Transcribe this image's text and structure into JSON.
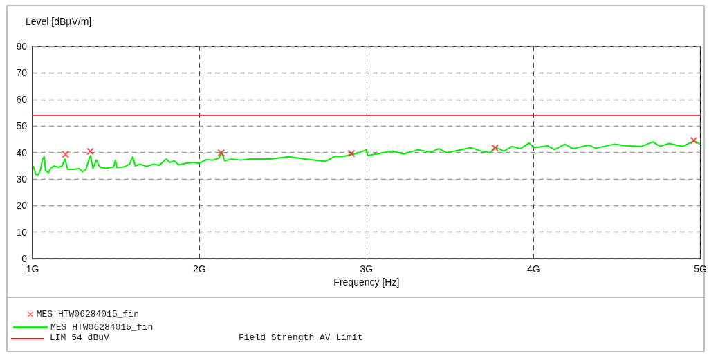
{
  "chart_data": {
    "type": "line",
    "xlabel": "Frequency [Hz]",
    "ylabel": "Level [dBµV/m]",
    "xlim": [
      1,
      5
    ],
    "xticks": [
      {
        "value": 1,
        "label": "1G"
      },
      {
        "value": 2,
        "label": "2G"
      },
      {
        "value": 3,
        "label": "3G"
      },
      {
        "value": 4,
        "label": "4G"
      },
      {
        "value": 5,
        "label": "5G"
      }
    ],
    "ylim": [
      0,
      80
    ],
    "yticks": [
      0,
      10,
      20,
      30,
      40,
      50,
      60,
      70,
      80
    ],
    "grid": true,
    "legend": "bottom",
    "series": [
      {
        "name": "MES HTW06284015_fin",
        "type": "scatter",
        "marker": "cross",
        "color": "#ff3030",
        "x": [
          1.198,
          1.346,
          2.13,
          2.91,
          3.77,
          4.96
        ],
        "values": [
          39.3,
          40.4,
          39.8,
          39.6,
          41.7,
          44.5
        ]
      },
      {
        "name": "MES HTW06284015_fin",
        "marker": "none",
        "line_style": "solid",
        "color": "#00ee00",
        "x": [
          1.005,
          1.019,
          1.033,
          1.047,
          1.06,
          1.07,
          1.078,
          1.095,
          1.108,
          1.129,
          1.156,
          1.177,
          1.195,
          1.211,
          1.246,
          1.28,
          1.3,
          1.32,
          1.339,
          1.348,
          1.362,
          1.383,
          1.403,
          1.437,
          1.486,
          1.497,
          1.506,
          1.547,
          1.582,
          1.6,
          1.616,
          1.643,
          1.684,
          1.725,
          1.76,
          1.8,
          1.822,
          1.849,
          1.877,
          1.918,
          1.959,
          2.0,
          2.041,
          2.082,
          2.117,
          2.134,
          2.151,
          2.192,
          2.247,
          2.302,
          2.425,
          2.535,
          2.631,
          2.754,
          2.809,
          2.864,
          2.908,
          2.947,
          2.999,
          3.008,
          3.083,
          3.155,
          3.221,
          3.31,
          3.386,
          3.433,
          3.481,
          3.564,
          3.626,
          3.687,
          3.742,
          3.77,
          3.824,
          3.872,
          3.921,
          3.975,
          4.003,
          4.085,
          4.126,
          4.188,
          4.236,
          4.332,
          4.373,
          4.483,
          4.564,
          4.647,
          4.716,
          4.757,
          4.812,
          4.894,
          4.963,
          5.0
        ],
        "values": [
          34.9,
          31.8,
          31.6,
          33.2,
          37.5,
          38.4,
          33.2,
          32.3,
          34.0,
          34.9,
          34.4,
          34.9,
          37.5,
          33.6,
          33.6,
          33.9,
          32.7,
          33.6,
          37.5,
          38.8,
          34.0,
          37.1,
          34.5,
          34.0,
          34.5,
          37.1,
          34.3,
          34.5,
          35.6,
          38.3,
          34.9,
          35.6,
          34.7,
          35.6,
          35.1,
          37.5,
          36.2,
          36.8,
          35.3,
          35.9,
          36.2,
          35.9,
          37.3,
          37.1,
          37.9,
          39.9,
          36.8,
          37.5,
          37.1,
          37.5,
          37.5,
          38.4,
          37.5,
          36.6,
          38.5,
          38.5,
          39.2,
          39.7,
          41.0,
          38.8,
          39.7,
          40.5,
          39.4,
          41.0,
          40.1,
          41.4,
          39.9,
          41.0,
          41.8,
          40.5,
          39.9,
          42.0,
          40.5,
          42.3,
          41.4,
          43.6,
          41.8,
          42.5,
          41.1,
          43.1,
          41.4,
          42.8,
          41.6,
          43.1,
          42.5,
          42.3,
          44.0,
          42.3,
          43.4,
          42.3,
          44.4,
          43.1
        ]
      }
    ],
    "ref_lines": [
      {
        "axis": "y",
        "value": 54,
        "label": "LIM 54 dBuV",
        "color": "#ee1111",
        "line_style": "solid"
      }
    ],
    "annotations": [
      "Field Strength AV Limit"
    ]
  }
}
